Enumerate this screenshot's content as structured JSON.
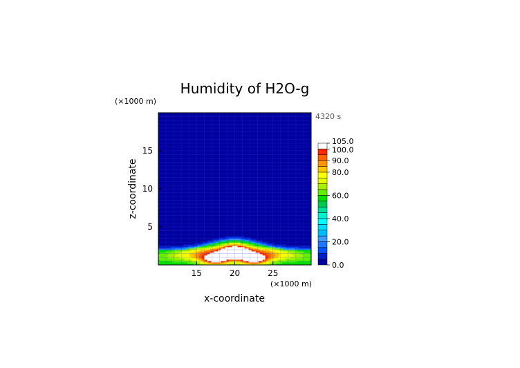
{
  "chart_data": {
    "type": "heatmap",
    "title": "Humidity of H2O-g",
    "time_label": "4320 s",
    "xlabel": "x-coordinate",
    "ylabel": "z-coordinate",
    "x_unit": "(×1000 m)",
    "y_unit": "(×1000 m)",
    "xlim": [
      10,
      30
    ],
    "ylim": [
      0,
      20
    ],
    "x_ticks": [
      "15",
      "20",
      "25"
    ],
    "x_tick_values": [
      15,
      20,
      25
    ],
    "y_ticks": [
      "5",
      "10",
      "15"
    ],
    "y_tick_values": [
      5,
      10,
      15
    ],
    "colorbar": {
      "range": [
        0,
        105
      ],
      "labels": [
        "0.0",
        "20.0",
        "40.0",
        "60.0",
        "80.0",
        "90.0",
        "100.0",
        "105.0"
      ],
      "label_values": [
        0,
        20,
        40,
        60,
        80,
        90,
        100,
        105
      ],
      "levels": [
        {
          "from": 0,
          "to": 5,
          "color": "#0000a0"
        },
        {
          "from": 5,
          "to": 10,
          "color": "#0020c8"
        },
        {
          "from": 10,
          "to": 15,
          "color": "#0050ff"
        },
        {
          "from": 15,
          "to": 20,
          "color": "#1e78ff"
        },
        {
          "from": 20,
          "to": 25,
          "color": "#3c9cff"
        },
        {
          "from": 25,
          "to": 30,
          "color": "#00bcff"
        },
        {
          "from": 30,
          "to": 35,
          "color": "#00dcff"
        },
        {
          "from": 35,
          "to": 40,
          "color": "#00ffff"
        },
        {
          "from": 40,
          "to": 45,
          "color": "#00f0d0"
        },
        {
          "from": 45,
          "to": 50,
          "color": "#00e09a"
        },
        {
          "from": 50,
          "to": 55,
          "color": "#00c850"
        },
        {
          "from": 55,
          "to": 60,
          "color": "#00e000"
        },
        {
          "from": 60,
          "to": 65,
          "color": "#60f000"
        },
        {
          "from": 65,
          "to": 70,
          "color": "#a8f000"
        },
        {
          "from": 70,
          "to": 75,
          "color": "#e6ff00"
        },
        {
          "from": 75,
          "to": 80,
          "color": "#ffff00"
        },
        {
          "from": 80,
          "to": 85,
          "color": "#ffc800"
        },
        {
          "from": 85,
          "to": 90,
          "color": "#ff9600"
        },
        {
          "from": 90,
          "to": 95,
          "color": "#ff6400"
        },
        {
          "from": 95,
          "to": 100,
          "color": "#ff2800"
        },
        {
          "from": 100,
          "to": 105,
          "color": "#ffffff"
        }
      ]
    },
    "field_features": [
      {
        "kind": "humid_layer",
        "x_range": [
          10,
          30
        ],
        "z_top": 1.9,
        "crest_x": 20,
        "crest_z": 3.3,
        "value": 55
      },
      {
        "kind": "saturated_band",
        "x_range": [
          13,
          27
        ],
        "z_center": 1.7,
        "value": 95
      },
      {
        "kind": "saturated_core",
        "x": 17.5,
        "z": 0.6,
        "value": 100
      },
      {
        "kind": "saturated_core",
        "x": 22.5,
        "z": 0.6,
        "value": 100
      },
      {
        "kind": "saturated_core",
        "x": 20,
        "z": 2.2,
        "value": 100
      }
    ]
  }
}
